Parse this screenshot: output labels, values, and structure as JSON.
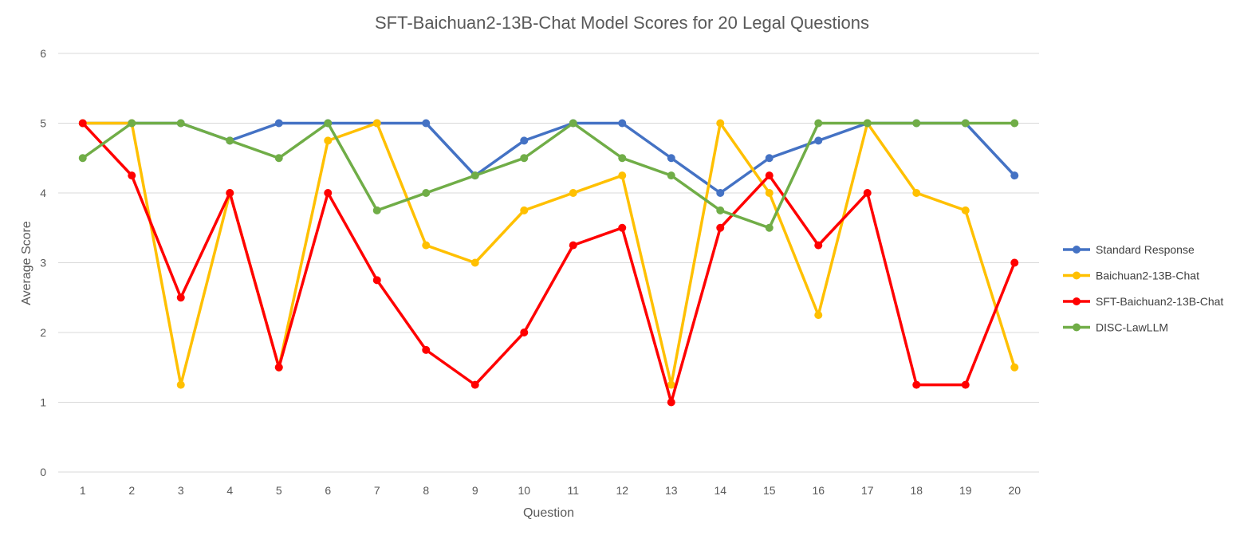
{
  "chart_data": {
    "type": "line",
    "title": "SFT-Baichuan2-13B-Chat Model  Scores for 20 Legal Questions",
    "xlabel": "Question",
    "ylabel": "Average Score",
    "categories": [
      "1",
      "2",
      "3",
      "4",
      "5",
      "6",
      "7",
      "8",
      "9",
      "10",
      "11",
      "12",
      "13",
      "14",
      "15",
      "16",
      "17",
      "18",
      "19",
      "20"
    ],
    "ylim": [
      0,
      6
    ],
    "yticks": [
      "0",
      "1",
      "2",
      "3",
      "4",
      "5",
      "6"
    ],
    "grid": true,
    "legend": "right",
    "series": [
      {
        "name": "Standard Response",
        "color": "#4472c4",
        "values": [
          5,
          5,
          5,
          4.75,
          5,
          5,
          5,
          5,
          4.25,
          4.75,
          5,
          5,
          4.5,
          4,
          4.5,
          4.75,
          5,
          5,
          5,
          4.25
        ]
      },
      {
        "name": "Baichuan2-13B-Chat",
        "color": "#ffc000",
        "values": [
          5,
          5,
          1.25,
          4,
          1.5,
          4.75,
          5,
          3.25,
          3,
          3.75,
          4,
          4.25,
          1.25,
          5,
          4,
          2.25,
          5,
          4,
          3.75,
          1.5
        ]
      },
      {
        "name": "SFT-Baichuan2-13B-Chat",
        "color": "#ff0000",
        "values": [
          5,
          4.25,
          2.5,
          4,
          1.5,
          4,
          2.75,
          1.75,
          1.25,
          2,
          3.25,
          3.5,
          1,
          3.5,
          4.25,
          3.25,
          4,
          1.25,
          1.25,
          3
        ]
      },
      {
        "name": "DISC-LawLLM",
        "color": "#70ad47",
        "values": [
          4.5,
          5,
          5,
          4.75,
          4.5,
          5,
          3.75,
          4,
          4.25,
          4.5,
          5,
          4.5,
          4.25,
          3.75,
          3.5,
          5,
          5,
          5,
          5,
          5
        ]
      }
    ]
  }
}
